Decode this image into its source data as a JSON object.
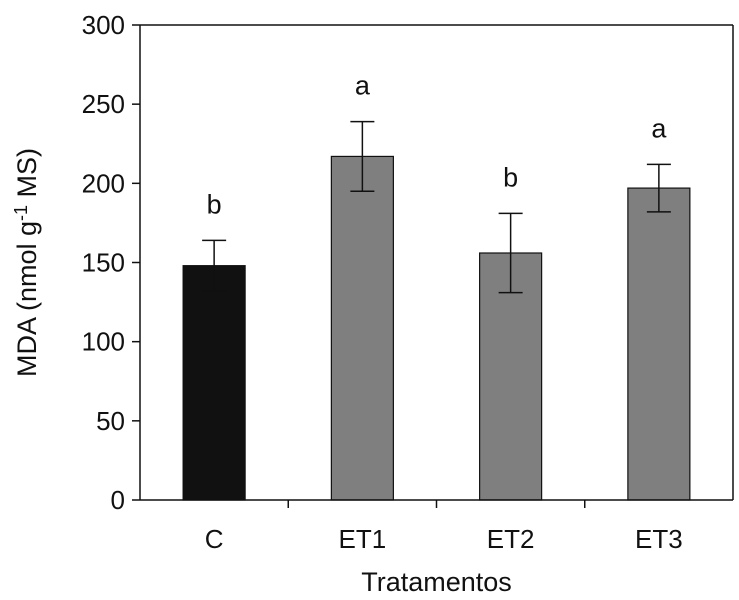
{
  "chart_data": {
    "type": "bar",
    "title": "",
    "xlabel": "Tratamentos",
    "ylabel": "MDA (nmol g",
    "ylabel_superscript": "-1",
    "ylabel_suffix": " MS)",
    "categories": [
      "C",
      "ET1",
      "ET2",
      "ET3"
    ],
    "values": [
      148,
      217,
      156,
      197
    ],
    "errors": [
      16,
      22,
      25,
      15
    ],
    "significance": [
      "b",
      "a",
      "b",
      "a"
    ],
    "bar_colors": [
      "#111111",
      "#7f7f7f",
      "#7f7f7f",
      "#7f7f7f"
    ],
    "ylim": [
      0,
      300
    ],
    "yticks": [
      0,
      50,
      100,
      150,
      200,
      250,
      300
    ],
    "grid": false,
    "legend": "none"
  }
}
